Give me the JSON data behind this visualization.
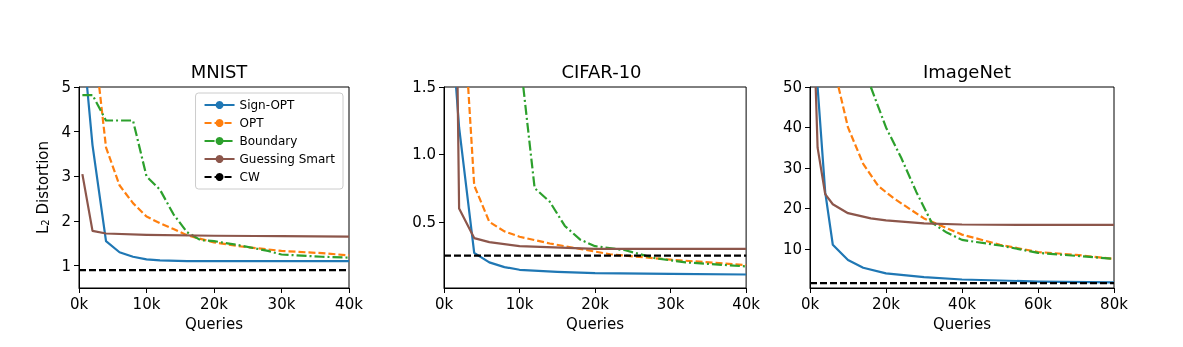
{
  "chart_data": [
    {
      "type": "line",
      "title": "MNIST",
      "xlabel": "Queries",
      "ylabel": "L$_{2}$ Distortion",
      "xlim": [
        0,
        40000
      ],
      "ylim": [
        0.5,
        5
      ],
      "xticks": [
        {
          "value": 0,
          "label": "0k"
        },
        {
          "value": 10000,
          "label": "10k"
        },
        {
          "value": 20000,
          "label": "20k"
        },
        {
          "value": 30000,
          "label": "30k"
        },
        {
          "value": 40000,
          "label": "40k"
        }
      ],
      "yticks": [
        1,
        2,
        3,
        4,
        5
      ],
      "grid": false,
      "legend": "top right",
      "marker": "none",
      "series": [
        {
          "name": "Sign-OPT",
          "color": "#1f77b4",
          "line_style": "solid",
          "x": [
            1200,
            2000,
            4000,
            6000,
            8000,
            10000,
            12000,
            16000,
            20000,
            30000,
            40000
          ],
          "values": [
            5,
            3.7,
            1.55,
            1.3,
            1.2,
            1.14,
            1.12,
            1.1,
            1.1,
            1.1,
            1.1
          ]
        },
        {
          "name": "OPT",
          "color": "#ff7f0e",
          "line_style": "dashed",
          "x": [
            3000,
            4000,
            6000,
            8000,
            10000,
            12000,
            14000,
            16000,
            20000,
            24000,
            30000,
            36000,
            40000
          ],
          "values": [
            5,
            3.65,
            2.8,
            2.4,
            2.1,
            1.95,
            1.82,
            1.68,
            1.52,
            1.43,
            1.33,
            1.28,
            1.23
          ]
        },
        {
          "name": "Boundary",
          "color": "#2ca02c",
          "line_style": "dashdot",
          "x": [
            500,
            2000,
            4000,
            6000,
            8000,
            10000,
            12000,
            14000,
            16000,
            18000,
            20000,
            24000,
            28000,
            30000,
            36000,
            40000
          ],
          "values": [
            4.82,
            4.82,
            4.25,
            4.25,
            4.25,
            3.0,
            2.7,
            2.15,
            1.75,
            1.57,
            1.55,
            1.45,
            1.33,
            1.25,
            1.2,
            1.18
          ]
        },
        {
          "name": "Guessing Smart",
          "color": "#8c564b",
          "line_style": "solid",
          "x": [
            500,
            2000,
            4000,
            10000,
            20000,
            30000,
            40000
          ],
          "values": [
            3.05,
            1.78,
            1.72,
            1.69,
            1.67,
            1.66,
            1.65
          ]
        },
        {
          "name": "CW",
          "color": "#000000",
          "line_style": "dashed",
          "x": [
            0,
            40000
          ],
          "values": [
            0.9,
            0.9
          ]
        }
      ]
    },
    {
      "type": "line",
      "title": "CIFAR-10",
      "xlabel": "Queries",
      "xlim": [
        0,
        40000
      ],
      "ylim": [
        0.01,
        1.5
      ],
      "xticks": [
        {
          "value": 0,
          "label": "0k"
        },
        {
          "value": 10000,
          "label": "10k"
        },
        {
          "value": 20000,
          "label": "20k"
        },
        {
          "value": 30000,
          "label": "30k"
        },
        {
          "value": 40000,
          "label": "40k"
        }
      ],
      "yticks": [
        0.5,
        {
          "value": 1,
          "label": "1.0"
        },
        1.5
      ],
      "grid": false,
      "legend": false,
      "marker": "none",
      "series": [
        {
          "color": "#1f77b4",
          "line_style": "solid",
          "x": [
            1600,
            2000,
            4000,
            6000,
            8000,
            10000,
            15000,
            20000,
            30000,
            40000
          ],
          "values": [
            1.5,
            1.2,
            0.27,
            0.2,
            0.165,
            0.145,
            0.13,
            0.12,
            0.115,
            0.11
          ]
        },
        {
          "color": "#ff7f0e",
          "line_style": "dashed",
          "x": [
            3200,
            4000,
            6000,
            8000,
            10000,
            14000,
            18000,
            22000,
            30000,
            40000
          ],
          "values": [
            1.5,
            0.77,
            0.5,
            0.43,
            0.39,
            0.34,
            0.3,
            0.26,
            0.22,
            0.18
          ]
        },
        {
          "color": "#2ca02c",
          "line_style": "dashdot",
          "x": [
            10500,
            12000,
            14000,
            16000,
            18000,
            20000,
            24000,
            28000,
            32000,
            40000
          ],
          "values": [
            1.5,
            0.75,
            0.65,
            0.47,
            0.37,
            0.32,
            0.29,
            0.23,
            0.2,
            0.17
          ]
        },
        {
          "color": "#8c564b",
          "line_style": "solid",
          "x": [
            1800,
            2000,
            4000,
            6000,
            10000,
            20000,
            40000
          ],
          "values": [
            1.5,
            0.6,
            0.38,
            0.35,
            0.32,
            0.3,
            0.3
          ]
        },
        {
          "color": "#000000",
          "line_style": "dashed",
          "x": [
            0,
            40000
          ],
          "values": [
            0.25,
            0.25
          ]
        }
      ]
    },
    {
      "type": "line",
      "title": "ImageNet",
      "xlabel": "Queries",
      "xlim": [
        0,
        80000
      ],
      "ylim": [
        0.3,
        50
      ],
      "xticks": [
        {
          "value": 0,
          "label": "0k"
        },
        {
          "value": 20000,
          "label": "20k"
        },
        {
          "value": 40000,
          "label": "40k"
        },
        {
          "value": 60000,
          "label": "60k"
        },
        {
          "value": 80000,
          "label": "80k"
        }
      ],
      "yticks": [
        10,
        20,
        30,
        40,
        50
      ],
      "grid": false,
      "legend": false,
      "marker": "none",
      "series": [
        {
          "color": "#1f77b4",
          "line_style": "solid",
          "x": [
            2000,
            4000,
            6000,
            10000,
            14000,
            20000,
            30000,
            40000,
            60000,
            80000
          ],
          "values": [
            50,
            24,
            11,
            7.2,
            5.3,
            3.9,
            3.0,
            2.4,
            1.9,
            1.7
          ]
        },
        {
          "color": "#ff7f0e",
          "line_style": "dashed",
          "x": [
            7500,
            10000,
            14000,
            18000,
            22000,
            30000,
            40000,
            50000,
            60000,
            70000,
            80000
          ],
          "values": [
            50,
            40,
            31,
            25.5,
            22.5,
            17.5,
            13.5,
            11,
            9.2,
            8.5,
            7.5
          ]
        },
        {
          "color": "#2ca02c",
          "line_style": "dashdot",
          "x": [
            16000,
            20000,
            24000,
            28000,
            32000,
            36000,
            40000,
            50000,
            60000,
            80000
          ],
          "values": [
            50,
            40,
            32.5,
            24,
            16.5,
            14,
            12.2,
            10.8,
            9,
            7.5
          ]
        },
        {
          "color": "#8c564b",
          "line_style": "solid",
          "x": [
            1500,
            2000,
            4000,
            6000,
            10000,
            16000,
            20000,
            30000,
            40000,
            60000,
            80000
          ],
          "values": [
            50,
            35,
            23.5,
            21,
            18.8,
            17.5,
            17,
            16.3,
            16,
            15.9,
            15.9
          ]
        },
        {
          "color": "#000000",
          "line_style": "dashed",
          "x": [
            0,
            80000
          ],
          "values": [
            1.5,
            1.5
          ]
        }
      ]
    }
  ]
}
